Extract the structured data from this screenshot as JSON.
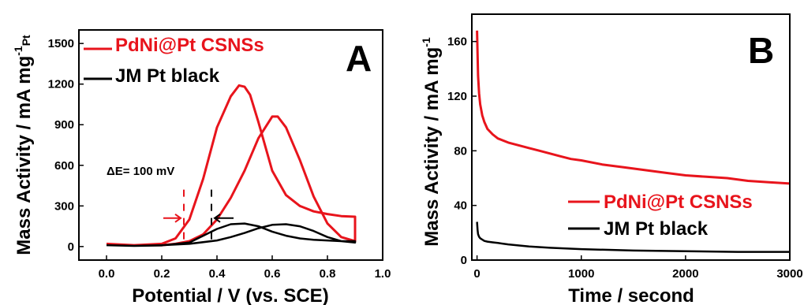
{
  "chart_data": [
    {
      "type": "line",
      "panel_label": "A",
      "xlabel": "Potential / V (vs. SCE)",
      "ylabel": "Mass Activity / mA mg",
      "ylabel_sup": "-1",
      "ylabel_sub": "Pt",
      "xlim": [
        -0.1,
        1.0
      ],
      "ylim": [
        -100,
        1600
      ],
      "xticks": [
        "0.0",
        "0.2",
        "0.4",
        "0.6",
        "0.8",
        "1.0"
      ],
      "yticks": [
        "0",
        "300",
        "600",
        "900",
        "1200",
        "1500"
      ],
      "legend_position": "top-left",
      "annotation": "ΔE= 100 mV",
      "onset_markers": [
        {
          "series": "PdNi@Pt CSNSs",
          "x": 0.28
        },
        {
          "series": "JM Pt black",
          "x": 0.38
        }
      ],
      "series": [
        {
          "name": "PdNi@Pt CSNSs",
          "color": "#e8141c",
          "x": [
            0.0,
            0.1,
            0.2,
            0.25,
            0.3,
            0.35,
            0.4,
            0.45,
            0.48,
            0.5,
            0.52,
            0.55,
            0.6,
            0.65,
            0.7,
            0.75,
            0.8,
            0.85,
            0.9,
            0.9,
            0.85,
            0.8,
            0.75,
            0.7,
            0.65,
            0.62,
            0.6,
            0.55,
            0.5,
            0.45,
            0.4,
            0.35,
            0.3,
            0.25,
            0.2,
            0.1,
            0.0
          ],
          "y": [
            20,
            10,
            20,
            60,
            200,
            500,
            880,
            1110,
            1190,
            1180,
            1120,
            920,
            560,
            380,
            300,
            260,
            240,
            225,
            220,
            40,
            70,
            170,
            370,
            640,
            880,
            960,
            960,
            800,
            560,
            360,
            200,
            90,
            40,
            20,
            10,
            10,
            20
          ]
        },
        {
          "name": "JM Pt black",
          "color": "#000000",
          "x": [
            0.0,
            0.1,
            0.2,
            0.3,
            0.35,
            0.4,
            0.45,
            0.5,
            0.55,
            0.6,
            0.65,
            0.7,
            0.75,
            0.8,
            0.85,
            0.9,
            0.9,
            0.85,
            0.8,
            0.75,
            0.7,
            0.65,
            0.6,
            0.55,
            0.5,
            0.45,
            0.4,
            0.3,
            0.2,
            0.1,
            0.0
          ],
          "y": [
            10,
            5,
            8,
            30,
            80,
            130,
            165,
            170,
            150,
            110,
            80,
            60,
            50,
            45,
            40,
            40,
            30,
            40,
            70,
            115,
            150,
            165,
            160,
            135,
            100,
            70,
            45,
            20,
            10,
            5,
            10
          ]
        }
      ]
    },
    {
      "type": "line",
      "panel_label": "B",
      "xlabel": "Time / second",
      "ylabel": "Mass Activity / mA mg",
      "ylabel_sup": "-1",
      "xlim": [
        -50,
        3000
      ],
      "ylim": [
        0,
        180
      ],
      "xticks": [
        "0",
        "1000",
        "2000",
        "3000"
      ],
      "yticks": [
        "0",
        "40",
        "80",
        "120",
        "160"
      ],
      "legend_position": "bottom-right",
      "series": [
        {
          "name": "PdNi@Pt CSNSs",
          "color": "#e8141c",
          "x": [
            0,
            5,
            10,
            20,
            30,
            50,
            70,
            100,
            150,
            200,
            300,
            400,
            500,
            600,
            700,
            800,
            900,
            1000,
            1200,
            1400,
            1600,
            1800,
            2000,
            2200,
            2400,
            2600,
            2800,
            3000
          ],
          "y": [
            168,
            150,
            135,
            122,
            114,
            106,
            101,
            96,
            92,
            89,
            86,
            84,
            82,
            80,
            78,
            76,
            74,
            73,
            70,
            68,
            66,
            64,
            62,
            61,
            60,
            58,
            57,
            56
          ]
        },
        {
          "name": "JM Pt black",
          "color": "#000000",
          "x": [
            0,
            5,
            10,
            20,
            30,
            50,
            70,
            100,
            150,
            200,
            300,
            500,
            700,
            1000,
            1500,
            2000,
            2500,
            3000
          ],
          "y": [
            28,
            22,
            19,
            17,
            16,
            15,
            14,
            13.5,
            13,
            12.5,
            11.5,
            10,
            9,
            8,
            7,
            6.5,
            6,
            6
          ]
        }
      ]
    }
  ]
}
